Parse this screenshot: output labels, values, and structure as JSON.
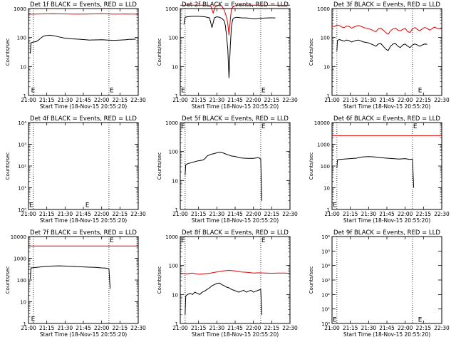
{
  "figure": {
    "colors": {
      "events": "#000000",
      "lld": "#e00000",
      "axes": "#000000",
      "background": "#ffffff"
    },
    "x_tick_labels": [
      "21:00",
      "21:15",
      "21:30",
      "21:45",
      "22:00",
      "22:15",
      "22:30"
    ],
    "ylabel": "Counts/sec",
    "xlabel": "Start Time (18-Nov-15 20:55:20)",
    "e_marker": "E",
    "exp_tick_labels": [
      "10⁰",
      "10¹",
      "10²",
      "10³",
      "10⁴"
    ]
  },
  "chart_data": [
    {
      "title": "Det 1f BLACK = Events, RED = LLD",
      "type": "line",
      "yscale": "log",
      "ylim": [
        1,
        1000
      ],
      "y_tick_labels": [
        "1",
        "10",
        "100",
        "1000"
      ],
      "x_unit": "minutes after 21:00",
      "xlim": [
        0,
        90
      ],
      "series": [
        {
          "name": "LLD",
          "color": "#e00000",
          "x": [
            0,
            3,
            10,
            20,
            30,
            40,
            50,
            60,
            70,
            80,
            90
          ],
          "y": [
            650,
            640,
            650,
            660,
            650,
            640,
            650,
            660,
            640,
            650,
            640
          ]
        },
        {
          "name": "Events",
          "color": "#000000",
          "x": [
            1.5,
            2,
            3,
            4,
            6,
            8,
            10,
            12,
            15,
            18,
            21,
            25,
            30,
            35,
            40,
            45,
            50,
            55,
            60,
            65,
            70,
            75,
            80,
            82,
            84,
            86,
            88
          ],
          "y": [
            28,
            65,
            68,
            70,
            72,
            80,
            95,
            110,
            118,
            120,
            115,
            105,
            95,
            90,
            88,
            85,
            82,
            83,
            84,
            82,
            80,
            82,
            84,
            86,
            86,
            87,
            88
          ]
        }
      ],
      "markers": [
        {
          "x": 1.5,
          "y": 1.3
        },
        {
          "x": 66,
          "y": 1.3
        }
      ],
      "vlines": [
        4,
        66
      ]
    },
    {
      "title": "Det 2f BLACK = Events, RED = LLD",
      "type": "line",
      "yscale": "log",
      "ylim": [
        1,
        1000
      ],
      "y_tick_labels": [
        "1",
        "10",
        "100",
        "1000"
      ],
      "x_unit": "minutes after 21:00",
      "xlim": [
        0,
        90
      ],
      "series": [
        {
          "name": "LLD",
          "color": "#e00000",
          "x": [
            0,
            10,
            20,
            25,
            27,
            29,
            31,
            34,
            36,
            38,
            39,
            40,
            41,
            42,
            44,
            46,
            50,
            60,
            70,
            80,
            90
          ],
          "y": [
            1300,
            1310,
            1300,
            1250,
            700,
            1250,
            1300,
            1250,
            900,
            500,
            300,
            120,
            400,
            1000,
            1200,
            1300,
            1300,
            1310,
            1300,
            1300,
            1300
          ]
        },
        {
          "name": "Events",
          "color": "#000000",
          "x": [
            3,
            4,
            6,
            10,
            15,
            20,
            24,
            26,
            28,
            30,
            32,
            34,
            36,
            37,
            38,
            39,
            40,
            41,
            42,
            43,
            44,
            46,
            50,
            55,
            60,
            65,
            70,
            75,
            78
          ],
          "y": [
            280,
            500,
            520,
            540,
            540,
            520,
            480,
            220,
            480,
            520,
            500,
            460,
            380,
            260,
            110,
            40,
            4,
            50,
            250,
            420,
            470,
            500,
            480,
            470,
            440,
            460,
            470,
            480,
            470
          ]
        }
      ],
      "markers": [
        {
          "x": 0,
          "y": 1.3
        },
        {
          "x": 66,
          "y": 1.3
        }
      ],
      "vlines": [
        4,
        66
      ]
    },
    {
      "title": "Det 3f BLACK = Events, RED = LLD",
      "type": "line",
      "yscale": "log",
      "ylim": [
        1,
        1000
      ],
      "y_tick_labels": [
        "1",
        "10",
        "100",
        "1000"
      ],
      "x_unit": "minutes after 21:00",
      "xlim": [
        0,
        90
      ],
      "series": [
        {
          "name": "LLD",
          "color": "#e00000",
          "x": [
            0,
            2,
            4,
            6,
            8,
            10,
            12,
            14,
            16,
            18,
            20,
            22,
            24,
            26,
            28,
            30,
            32,
            34,
            36,
            38,
            40,
            42,
            44,
            46,
            48,
            50,
            52,
            54,
            56,
            58,
            60,
            62,
            64,
            66,
            68,
            70,
            72,
            74,
            76,
            78,
            80,
            82,
            84,
            86,
            88,
            90
          ],
          "y": [
            250,
            240,
            270,
            260,
            230,
            220,
            250,
            240,
            210,
            230,
            250,
            260,
            240,
            220,
            210,
            200,
            190,
            170,
            160,
            200,
            210,
            180,
            150,
            130,
            170,
            200,
            210,
            180,
            170,
            190,
            210,
            160,
            150,
            200,
            220,
            190,
            170,
            200,
            220,
            210,
            180,
            200,
            230,
            210,
            200,
            220
          ]
        },
        {
          "name": "Events",
          "color": "#000000",
          "x": [
            4,
            4.5,
            6,
            8,
            10,
            12,
            14,
            16,
            18,
            20,
            22,
            24,
            26,
            28,
            30,
            32,
            34,
            36,
            38,
            40,
            42,
            44,
            46,
            48,
            50,
            52,
            54,
            56,
            58,
            60,
            62,
            64,
            66,
            68,
            70,
            72,
            74,
            76,
            78
          ],
          "y": [
            35,
            80,
            85,
            80,
            75,
            82,
            78,
            70,
            75,
            80,
            82,
            75,
            70,
            68,
            65,
            60,
            55,
            50,
            60,
            62,
            50,
            40,
            35,
            50,
            60,
            62,
            50,
            45,
            55,
            60,
            50,
            45,
            55,
            60,
            55,
            50,
            55,
            60,
            58
          ]
        }
      ],
      "markers": [
        {
          "x": 70,
          "y": 1.3
        }
      ],
      "vlines": [
        4,
        66
      ]
    },
    {
      "title": "Det 4f BLACK = Events, RED = LLD",
      "type": "line",
      "yscale": "log",
      "ylim": [
        1,
        10000
      ],
      "y_tick_labels": [
        "10⁰",
        "10¹",
        "10²",
        "10³",
        "10⁴"
      ],
      "x_unit": "minutes after 21:00",
      "xlim": [
        0,
        90
      ],
      "series": [],
      "markers": [
        {
          "x": 0,
          "y": 1.3
        },
        {
          "x": 46,
          "y": 1.3
        }
      ],
      "vlines": [
        4,
        66
      ]
    },
    {
      "title": "Det 5f BLACK = Events, RED = LLD",
      "type": "line",
      "yscale": "log",
      "ylim": [
        1,
        1000
      ],
      "y_tick_labels": [
        "1",
        "10",
        "100",
        "1000"
      ],
      "x_unit": "minutes after 21:00",
      "xlim": [
        0,
        90
      ],
      "series": [
        {
          "name": "LLD",
          "color": "#e00000",
          "x": [
            0,
            20,
            40,
            60,
            66
          ],
          "y": [
            1000,
            1000,
            1000,
            1000,
            1000
          ]
        },
        {
          "name": "Events",
          "color": "#000000",
          "x": [
            4,
            4.5,
            6,
            8,
            10,
            12,
            15,
            18,
            20,
            22,
            25,
            28,
            30,
            32,
            35,
            38,
            40,
            42,
            45,
            48,
            50,
            55,
            60,
            62,
            64,
            66,
            67
          ],
          "y": [
            15,
            35,
            38,
            40,
            42,
            45,
            48,
            50,
            55,
            70,
            80,
            85,
            90,
            95,
            90,
            80,
            75,
            70,
            68,
            62,
            60,
            58,
            58,
            60,
            62,
            55,
            2
          ]
        }
      ],
      "markers": [
        {
          "x": 0,
          "y": 1000
        },
        {
          "x": 66,
          "y": 1000
        }
      ],
      "vlines": [
        4,
        66
      ]
    },
    {
      "title": "Det 6f BLACK = Events, RED = LLD",
      "type": "line",
      "yscale": "log",
      "ylim": [
        1,
        10000
      ],
      "y_tick_labels": [
        "1",
        "10",
        "100",
        "1000",
        "10000"
      ],
      "x_unit": "minutes after 21:00",
      "xlim": [
        0,
        90
      ],
      "series": [
        {
          "name": "LLD",
          "color": "#e00000",
          "x": [
            0,
            20,
            40,
            60,
            70,
            80,
            90
          ],
          "y": [
            2500,
            2500,
            2500,
            2500,
            2500,
            2500,
            2500
          ]
        },
        {
          "name": "Events",
          "color": "#000000",
          "x": [
            4,
            4.5,
            6,
            10,
            15,
            20,
            25,
            30,
            35,
            40,
            45,
            50,
            55,
            60,
            62,
            64,
            66,
            67
          ],
          "y": [
            80,
            190,
            200,
            210,
            220,
            230,
            260,
            270,
            260,
            240,
            230,
            220,
            210,
            220,
            210,
            200,
            210,
            10
          ]
        }
      ],
      "markers": [
        {
          "x": 0,
          "y": 1.3
        },
        {
          "x": 66,
          "y": 10000
        }
      ],
      "vlines": [
        4,
        66
      ]
    },
    {
      "title": "Det 7f BLACK = Events, RED = LLD",
      "type": "line",
      "yscale": "log",
      "ylim": [
        1,
        10000
      ],
      "y_tick_labels": [
        "1",
        "10",
        "100",
        "1000",
        "10000"
      ],
      "x_unit": "minutes after 21:00",
      "xlim": [
        0,
        90
      ],
      "series": [
        {
          "name": "LLD",
          "color": "#e00000",
          "x": [
            0,
            20,
            40,
            60,
            70,
            80,
            90
          ],
          "y": [
            3700,
            3700,
            3700,
            3700,
            3700,
            3700,
            3700
          ]
        },
        {
          "name": "Events",
          "color": "#000000",
          "x": [
            1.5,
            2,
            4,
            8,
            12,
            16,
            20,
            25,
            30,
            35,
            40,
            45,
            50,
            55,
            60,
            64,
            66,
            67
          ],
          "y": [
            110,
            360,
            370,
            390,
            410,
            430,
            440,
            450,
            440,
            430,
            410,
            400,
            390,
            380,
            360,
            350,
            330,
            40
          ]
        }
      ],
      "markers": [
        {
          "x": 1.5,
          "y": 1.3
        },
        {
          "x": 66,
          "y": 10000
        }
      ],
      "vlines": [
        4,
        66
      ]
    },
    {
      "title": "Det 8f BLACK = Events, RED = LLD",
      "type": "line",
      "yscale": "log",
      "ylim": [
        1,
        1000
      ],
      "y_tick_labels": [
        "1",
        "10",
        "100",
        "1000"
      ],
      "x_unit": "minutes after 21:00",
      "xlim": [
        0,
        90
      ],
      "series": [
        {
          "name": "LLD",
          "color": "#e00000",
          "x": [
            0,
            5,
            10,
            15,
            20,
            25,
            30,
            35,
            40,
            45,
            50,
            55,
            60,
            65,
            70,
            75,
            80,
            85,
            90
          ],
          "y": [
            55,
            52,
            55,
            50,
            52,
            55,
            60,
            65,
            68,
            65,
            60,
            58,
            55,
            56,
            55,
            54,
            55,
            55,
            54
          ]
        },
        {
          "name": "Events",
          "color": "#000000",
          "x": [
            4,
            4.5,
            6,
            8,
            10,
            12,
            14,
            16,
            18,
            20,
            22,
            24,
            26,
            28,
            30,
            32,
            34,
            36,
            38,
            40,
            42,
            44,
            46,
            48,
            50,
            52,
            54,
            56,
            58,
            60,
            62,
            64,
            66,
            67
          ],
          "y": [
            2,
            9,
            10,
            11,
            10,
            12,
            11,
            10,
            12,
            13,
            15,
            17,
            20,
            22,
            24,
            25,
            22,
            20,
            18,
            17,
            15,
            14,
            13,
            12,
            13,
            14,
            12,
            13,
            14,
            12,
            13,
            14,
            15,
            2
          ]
        }
      ],
      "markers": [
        {
          "x": 0,
          "y": 1000
        },
        {
          "x": 66,
          "y": 1000
        }
      ],
      "vlines": [
        4,
        66
      ]
    },
    {
      "title": "Det 9f BLACK = Events, RED = LLD",
      "type": "line",
      "yscale": "log",
      "ylim": [
        1,
        1000000
      ],
      "y_tick_labels": [
        "10⁰",
        "10¹",
        "10²",
        "10³",
        "10⁴",
        "10⁵",
        "10⁶"
      ],
      "x_unit": "minutes after 21:00",
      "xlim": [
        0,
        90
      ],
      "series": [],
      "markers": [
        {
          "x": 0,
          "y": 1.3
        },
        {
          "x": 70,
          "y": 1.3
        }
      ],
      "vlines": [
        4,
        66
      ]
    }
  ]
}
